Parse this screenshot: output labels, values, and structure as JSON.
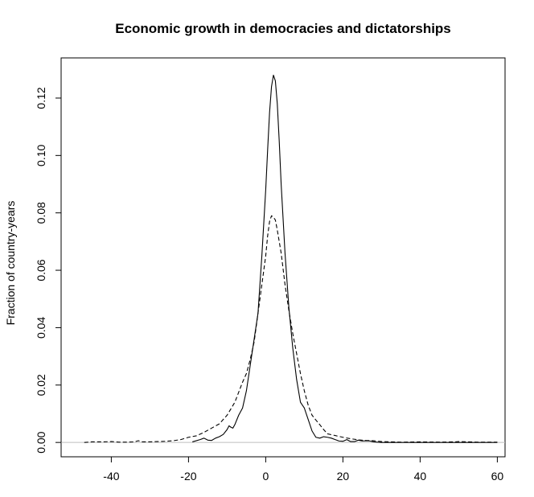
{
  "chart_data": {
    "type": "line",
    "title": "Economic growth in democracies and dictatorships",
    "xlabel": "",
    "ylabel": "Fraction of country-years",
    "xlim": [
      -53,
      62
    ],
    "ylim": [
      -0.005,
      0.134
    ],
    "x_ticks": [
      -40,
      -20,
      0,
      20,
      40,
      60
    ],
    "y_ticks": [
      0.0,
      0.02,
      0.04,
      0.06,
      0.08,
      0.1,
      0.12
    ],
    "x_tick_labels": [
      "-40",
      "-20",
      "0",
      "20",
      "40",
      "60"
    ],
    "y_tick_labels": [
      "0.00",
      "0.02",
      "0.04",
      "0.06",
      "0.08",
      "0.10",
      "0.12"
    ],
    "grid": false,
    "reference_line": {
      "y": 0,
      "color": "#bebebe"
    },
    "series": [
      {
        "style": "solid",
        "color": "#000000",
        "x": [
          -19,
          -17,
          -16,
          -15,
          -14,
          -13,
          -12,
          -11,
          -10,
          -9.5,
          -9,
          -8.5,
          -8,
          -7,
          -6,
          -5,
          -4,
          -3,
          -2,
          -1,
          0,
          0.5,
          1,
          1.5,
          2,
          2.5,
          3,
          3.5,
          4,
          5,
          6,
          7,
          8,
          8.5,
          9,
          10,
          11,
          12,
          13,
          14,
          15,
          16,
          17,
          18,
          19,
          20,
          21,
          22,
          23,
          24,
          25,
          26,
          27,
          28,
          30,
          35,
          40,
          45,
          50,
          55,
          60
        ],
        "y": [
          0.0002,
          0.001,
          0.0015,
          0.0008,
          0.0007,
          0.0015,
          0.002,
          0.0028,
          0.0045,
          0.0058,
          0.0053,
          0.005,
          0.0062,
          0.0095,
          0.012,
          0.018,
          0.027,
          0.036,
          0.045,
          0.065,
          0.088,
          0.102,
          0.115,
          0.124,
          0.128,
          0.126,
          0.118,
          0.105,
          0.09,
          0.066,
          0.047,
          0.033,
          0.022,
          0.018,
          0.014,
          0.012,
          0.008,
          0.004,
          0.0018,
          0.0015,
          0.002,
          0.0018,
          0.0015,
          0.001,
          0.0005,
          0.0004,
          0.001,
          0.0003,
          0.0003,
          0.0008,
          0.0005,
          0.0006,
          0.0005,
          0.0002,
          0.0,
          0.0,
          0.0,
          0.0,
          0.0,
          0.0,
          0.0
        ]
      },
      {
        "style": "dashed",
        "color": "#000000",
        "x": [
          -47,
          -45,
          -42,
          -40,
          -38,
          -36,
          -34,
          -33,
          -32,
          -30,
          -28,
          -26,
          -24,
          -22,
          -20,
          -18,
          -16,
          -14,
          -12,
          -10,
          -8,
          -6,
          -5,
          -4,
          -3,
          -2,
          -1,
          0,
          0.5,
          1,
          1.5,
          2,
          2.5,
          3,
          4,
          5,
          6,
          7,
          8,
          9,
          10,
          11,
          12,
          13,
          14,
          15,
          16,
          18,
          20,
          22,
          24,
          26,
          28,
          30,
          35,
          40,
          45,
          49,
          50,
          55,
          60
        ],
        "y": [
          0.0,
          0.0002,
          0.0002,
          0.0003,
          0.0001,
          0.0001,
          0.0002,
          0.0006,
          0.0002,
          0.0002,
          0.0003,
          0.0004,
          0.0006,
          0.001,
          0.0018,
          0.0023,
          0.0035,
          0.005,
          0.0065,
          0.0095,
          0.014,
          0.021,
          0.024,
          0.029,
          0.035,
          0.045,
          0.055,
          0.065,
          0.072,
          0.077,
          0.079,
          0.0785,
          0.0775,
          0.074,
          0.066,
          0.055,
          0.046,
          0.038,
          0.031,
          0.024,
          0.018,
          0.013,
          0.0095,
          0.0078,
          0.0062,
          0.0045,
          0.003,
          0.0024,
          0.0018,
          0.0013,
          0.0009,
          0.0007,
          0.0006,
          0.0003,
          0.0001,
          0.0002,
          0.0001,
          0.0002,
          0.0003,
          0.0001,
          0.0001
        ]
      }
    ]
  }
}
